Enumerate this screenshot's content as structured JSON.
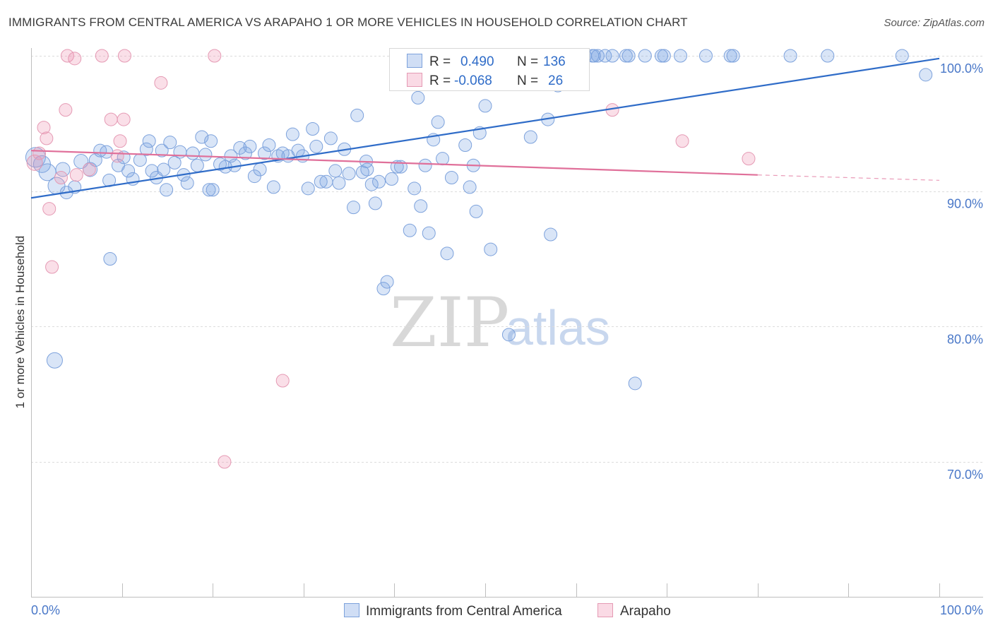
{
  "title": "IMMIGRANTS FROM CENTRAL AMERICA VS ARAPAHO 1 OR MORE VEHICLES IN HOUSEHOLD CORRELATION CHART",
  "source": "Source: ZipAtlas.com",
  "watermark": {
    "zip": "ZIP",
    "atlas": "atlas"
  },
  "legend_box": {
    "r_label": "R =",
    "n_label": "N =",
    "rows": [
      {
        "r": "0.490",
        "n": "136",
        "color": "#6b9ae0"
      },
      {
        "r": "-0.068",
        "n": "26",
        "color": "#e88aa8"
      }
    ]
  },
  "colors": {
    "blue_fill": "rgba(120,160,225,0.28)",
    "blue_stroke": "#7da2dc",
    "blue_line": "#2f6cc8",
    "pink_fill": "rgba(240,150,180,0.30)",
    "pink_stroke": "#e59ab4",
    "pink_line": "#e0709a",
    "grid": "#dcdcdc",
    "axis_text": "#4a78c8"
  },
  "chart_data": {
    "type": "scatter",
    "title": "IMMIGRANTS FROM CENTRAL AMERICA VS ARAPAHO 1 OR MORE VEHICLES IN HOUSEHOLD CORRELATION CHART",
    "xlabel": "",
    "ylabel": "1 or more Vehicles in Household",
    "x_tick_labels": [
      "0.0%",
      "100.0%"
    ],
    "y_tick_labels": [
      "70.0%",
      "80.0%",
      "90.0%",
      "100.0%"
    ],
    "y_ticks": [
      70,
      80,
      90,
      100
    ],
    "xlim": [
      0,
      100
    ],
    "ylim": [
      60,
      101.5
    ],
    "grid": true,
    "legend_position": "bottom",
    "series": [
      {
        "name": "Immigrants from Central America",
        "r": 0.49,
        "n": 136,
        "trend": {
          "x": [
            0,
            100
          ],
          "y": [
            89.5,
            99.8
          ]
        },
        "points": [
          [
            0.5,
            92.5,
            14
          ],
          [
            1.2,
            92.0,
            12
          ],
          [
            1.8,
            91.4,
            12
          ],
          [
            2.8,
            90.4,
            12
          ],
          [
            3.5,
            91.6,
            10
          ],
          [
            4.8,
            90.3,
            9
          ],
          [
            5.5,
            92.2,
            10
          ],
          [
            6.5,
            91.6,
            10
          ],
          [
            7.1,
            92.3,
            9
          ],
          [
            7.6,
            93.0,
            9
          ],
          [
            8.3,
            92.9,
            9
          ],
          [
            8.6,
            90.8,
            9
          ],
          [
            9.6,
            91.9,
            9
          ],
          [
            10.2,
            92.5,
            9
          ],
          [
            10.7,
            91.5,
            9
          ],
          [
            11.2,
            90.9,
            9
          ],
          [
            12.0,
            92.3,
            9
          ],
          [
            12.7,
            93.1,
            9
          ],
          [
            13.0,
            93.7,
            9
          ],
          [
            13.3,
            91.5,
            9
          ],
          [
            13.8,
            91.0,
            9
          ],
          [
            14.4,
            93.0,
            9
          ],
          [
            14.9,
            90.1,
            9
          ],
          [
            15.3,
            93.6,
            9
          ],
          [
            15.8,
            92.1,
            9
          ],
          [
            16.4,
            92.9,
            9
          ],
          [
            16.8,
            91.2,
            9
          ],
          [
            17.2,
            90.6,
            9
          ],
          [
            17.8,
            92.8,
            9
          ],
          [
            18.3,
            91.9,
            9
          ],
          [
            18.8,
            94.0,
            9
          ],
          [
            19.2,
            92.7,
            9
          ],
          [
            19.6,
            90.1,
            9
          ],
          [
            20.0,
            90.1,
            9
          ],
          [
            20.8,
            92.0,
            9
          ],
          [
            21.4,
            91.8,
            9
          ],
          [
            22.0,
            92.6,
            9
          ],
          [
            22.4,
            91.9,
            9
          ],
          [
            23.0,
            93.2,
            9
          ],
          [
            23.6,
            92.8,
            9
          ],
          [
            24.1,
            93.3,
            9
          ],
          [
            24.6,
            91.1,
            9
          ],
          [
            25.2,
            91.6,
            9
          ],
          [
            25.7,
            92.8,
            9
          ],
          [
            26.2,
            93.4,
            9
          ],
          [
            26.7,
            90.3,
            9
          ],
          [
            27.2,
            92.6,
            9
          ],
          [
            27.7,
            92.8,
            9
          ],
          [
            28.3,
            92.6,
            9
          ],
          [
            28.8,
            94.2,
            9
          ],
          [
            29.4,
            93.0,
            9
          ],
          [
            29.9,
            92.6,
            9
          ],
          [
            30.5,
            90.2,
            9
          ],
          [
            31.0,
            94.6,
            9
          ],
          [
            31.4,
            93.3,
            9
          ],
          [
            31.9,
            90.7,
            9
          ],
          [
            32.5,
            90.7,
            9
          ],
          [
            33.0,
            93.9,
            9
          ],
          [
            33.5,
            91.5,
            9
          ],
          [
            33.9,
            90.6,
            9
          ],
          [
            34.5,
            93.1,
            9
          ],
          [
            35.0,
            91.3,
            9
          ],
          [
            35.5,
            88.8,
            9
          ],
          [
            35.9,
            95.6,
            9
          ],
          [
            36.5,
            91.4,
            9
          ],
          [
            37.0,
            91.6,
            9
          ],
          [
            37.5,
            90.5,
            9
          ],
          [
            37.9,
            89.1,
            9
          ],
          [
            38.3,
            90.7,
            9
          ],
          [
            38.8,
            82.8,
            9
          ],
          [
            39.2,
            83.3,
            9
          ],
          [
            39.7,
            90.9,
            9
          ],
          [
            40.3,
            91.8,
            9
          ],
          [
            40.7,
            91.8,
            9
          ],
          [
            41.3,
            98.3,
            9
          ],
          [
            41.7,
            87.1,
            9
          ],
          [
            42.2,
            90.2,
            9
          ],
          [
            42.6,
            96.9,
            9
          ],
          [
            42.9,
            88.9,
            9
          ],
          [
            43.4,
            91.9,
            9
          ],
          [
            43.8,
            86.9,
            9
          ],
          [
            44.3,
            93.8,
            9
          ],
          [
            44.8,
            95.1,
            9
          ],
          [
            45.3,
            92.4,
            9
          ],
          [
            45.8,
            85.4,
            9
          ],
          [
            46.3,
            91.0,
            9
          ],
          [
            47.0,
            100,
            9
          ],
          [
            47.8,
            93.4,
            9
          ],
          [
            48.3,
            90.3,
            9
          ],
          [
            49.0,
            88.5,
            9
          ],
          [
            49.4,
            94.3,
            9
          ],
          [
            50.0,
            96.3,
            9
          ],
          [
            50.6,
            85.7,
            9
          ],
          [
            51.4,
            100,
            9
          ],
          [
            52.0,
            98.3,
            9
          ],
          [
            52.6,
            79.4,
            9
          ],
          [
            53.3,
            100,
            9
          ],
          [
            54.0,
            100,
            9
          ],
          [
            55.0,
            94.0,
            9
          ],
          [
            55.5,
            100,
            9
          ],
          [
            56.2,
            100,
            9
          ],
          [
            56.9,
            95.3,
            9
          ],
          [
            57.2,
            86.8,
            9
          ],
          [
            58.0,
            97.8,
            9
          ],
          [
            59.0,
            100,
            9
          ],
          [
            60.2,
            100,
            9
          ],
          [
            61.0,
            100,
            9
          ],
          [
            61.8,
            100,
            9
          ],
          [
            62.4,
            100,
            9
          ],
          [
            63.2,
            100,
            9
          ],
          [
            64.0,
            100,
            9
          ],
          [
            65.5,
            100,
            9
          ],
          [
            66.5,
            75.8,
            9
          ],
          [
            67.6,
            100,
            9
          ],
          [
            69.7,
            100,
            9
          ],
          [
            71.5,
            100,
            9
          ],
          [
            74.3,
            100,
            9
          ],
          [
            77.0,
            100,
            9
          ],
          [
            77.3,
            100,
            9
          ],
          [
            83.6,
            100,
            9
          ],
          [
            87.7,
            100,
            9
          ],
          [
            95.9,
            100,
            9
          ],
          [
            98.5,
            98.6,
            9
          ],
          [
            2.6,
            77.5,
            11
          ],
          [
            3.9,
            89.9,
            9
          ],
          [
            8.7,
            85.0,
            9
          ],
          [
            14.6,
            91.6,
            9
          ],
          [
            19.8,
            93.7,
            9
          ],
          [
            36.9,
            92.2,
            9
          ],
          [
            48.7,
            91.9,
            9
          ],
          [
            65.8,
            100,
            9
          ],
          [
            58.7,
            100,
            9
          ],
          [
            55.2,
            100,
            9
          ],
          [
            69.4,
            100,
            9
          ],
          [
            62.0,
            100,
            9
          ],
          [
            50.8,
            100,
            9
          ]
        ]
      },
      {
        "name": "Arapaho",
        "r": -0.068,
        "n": 26,
        "trend": {
          "x": [
            0,
            80
          ],
          "y": [
            93.0,
            91.2
          ]
        },
        "trend_dashed": {
          "x": [
            80,
            100
          ],
          "y": [
            91.2,
            90.8
          ]
        },
        "points": [
          [
            0.4,
            92.1,
            11
          ],
          [
            0.9,
            92.8,
            9
          ],
          [
            1.4,
            94.7,
            9
          ],
          [
            1.7,
            93.9,
            9
          ],
          [
            2.0,
            88.7,
            9
          ],
          [
            2.3,
            84.4,
            9
          ],
          [
            3.3,
            91.0,
            9
          ],
          [
            3.8,
            96.0,
            9
          ],
          [
            4.0,
            100,
            9
          ],
          [
            4.8,
            99.8,
            9
          ],
          [
            5.0,
            91.2,
            9
          ],
          [
            6.4,
            91.6,
            9
          ],
          [
            7.8,
            100,
            9
          ],
          [
            8.8,
            95.3,
            9
          ],
          [
            9.5,
            92.6,
            9
          ],
          [
            9.8,
            93.7,
            9
          ],
          [
            10.2,
            95.3,
            9
          ],
          [
            10.3,
            100,
            9
          ],
          [
            14.3,
            98.0,
            9
          ],
          [
            20.2,
            100,
            9
          ],
          [
            21.3,
            70.0,
            9
          ],
          [
            27.7,
            76.0,
            9
          ],
          [
            42.0,
            98.3,
            9
          ],
          [
            64.0,
            96.0,
            9
          ],
          [
            71.7,
            93.7,
            9
          ],
          [
            79.0,
            92.4,
            9
          ]
        ]
      }
    ]
  }
}
